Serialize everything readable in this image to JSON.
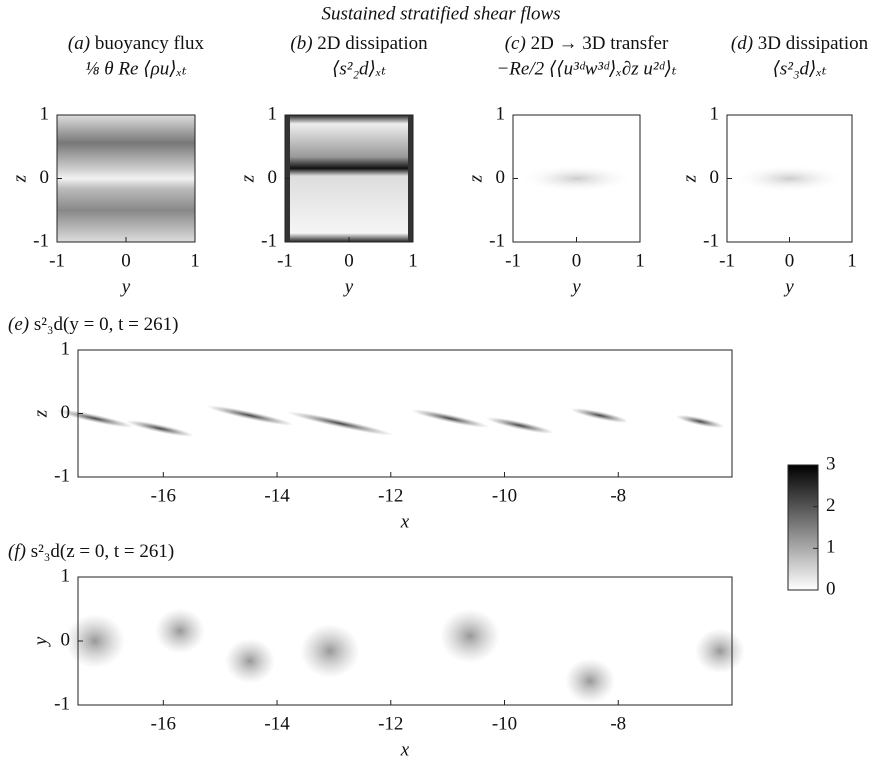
{
  "title": "Sustained stratified shear flows",
  "chart_data": [
    {
      "type": "heatmap",
      "label": "(a)",
      "title": "buoyancy flux",
      "subtitle": "⅛ θ Re ⟨ρu⟩ₓₜ",
      "xlabel": "y",
      "ylabel": "z",
      "xlim": [
        -1,
        1
      ],
      "ylim": [
        -1,
        1
      ],
      "xticks": [
        -1,
        0,
        1
      ],
      "yticks": [
        -1,
        0,
        1
      ],
      "pattern": "bands"
    },
    {
      "type": "heatmap",
      "label": "(b)",
      "title": "2D dissipation",
      "subtitle": "⟨s²₂d⟩ₓₜ",
      "xlabel": "y",
      "ylabel": "z",
      "xlim": [
        -1,
        1
      ],
      "ylim": [
        -1,
        1
      ],
      "xticks": [
        -1,
        0,
        1
      ],
      "yticks": [
        -1,
        0,
        1
      ],
      "pattern": "frame"
    },
    {
      "type": "heatmap",
      "label": "(c)",
      "title": "2D → 3D transfer",
      "subtitle": "−Re/2 ⟨⟨u³ᵈw³ᵈ⟩ₓ∂z u²ᵈ⟩ₜ",
      "xlabel": "y",
      "ylabel": "z",
      "xlim": [
        -1,
        1
      ],
      "ylim": [
        -1,
        1
      ],
      "xticks": [
        -1,
        0,
        1
      ],
      "yticks": [
        -1,
        0,
        1
      ],
      "pattern": "faint"
    },
    {
      "type": "heatmap",
      "label": "(d)",
      "title": "3D dissipation",
      "subtitle": "⟨s²₃d⟩ₓₜ",
      "xlabel": "y",
      "ylabel": "z",
      "xlim": [
        -1,
        1
      ],
      "ylim": [
        -1,
        1
      ],
      "xticks": [
        -1,
        0,
        1
      ],
      "yticks": [
        -1,
        0,
        1
      ],
      "pattern": "faint"
    },
    {
      "type": "heatmap",
      "label": "(e)",
      "title": "s²₃d(y = 0, t = 261)",
      "xlabel": "x",
      "ylabel": "z",
      "xlim": [
        -17.5,
        -6
      ],
      "ylim": [
        -1,
        1
      ],
      "xticks": [
        -16,
        -14,
        -12,
        -10,
        -8
      ],
      "yticks": [
        -1,
        0,
        1
      ],
      "pattern": "streaks"
    },
    {
      "type": "heatmap",
      "label": "(f)",
      "title": "s²₃d(z = 0, t = 261)",
      "xlabel": "x",
      "ylabel": "y",
      "xlim": [
        -17.5,
        -6
      ],
      "ylim": [
        -1,
        1
      ],
      "xticks": [
        -16,
        -14,
        -12,
        -10,
        -8
      ],
      "yticks": [
        -1,
        0,
        1
      ],
      "pattern": "blobs"
    },
    {
      "type": "colorbar",
      "clim": [
        0,
        3
      ],
      "ticks": [
        0,
        1,
        2,
        3
      ]
    }
  ]
}
